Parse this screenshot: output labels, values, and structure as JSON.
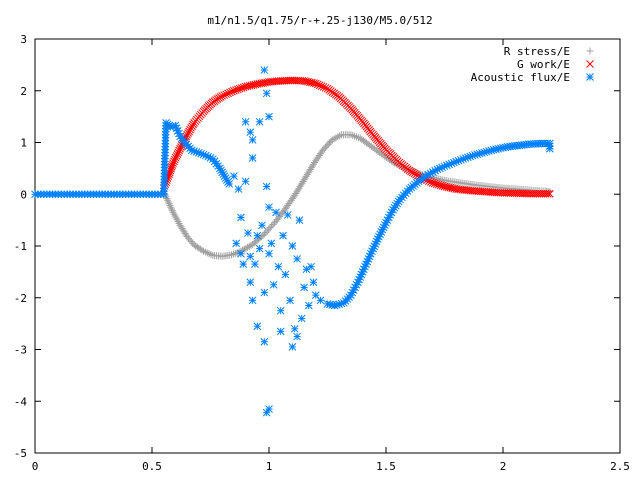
{
  "chart_data": {
    "type": "scatter",
    "title": "m1/n1.5/q1.75/r-+.25-j130/M5.0/512",
    "xlabel": "",
    "ylabel": "",
    "xlim": [
      0,
      2.5
    ],
    "ylim": [
      -5,
      3
    ],
    "x_ticks": [
      0,
      0.5,
      1,
      1.5,
      2,
      2.5
    ],
    "x_tick_labels": [
      "0",
      "0.5",
      "1",
      "1.5",
      "2",
      "2.5"
    ],
    "y_ticks": [
      3,
      2,
      1,
      0,
      -1,
      -2,
      -3,
      -4,
      -5
    ],
    "y_tick_labels": [
      "3",
      "2",
      "1",
      "0",
      "-1",
      "-2",
      "-3",
      "-4",
      "-5"
    ],
    "grid": false,
    "legend_position": "top-right",
    "series": [
      {
        "name": "R stress/E",
        "marker": "plus",
        "color": "#a0a0a0",
        "points": [
          [
            0.55,
            0.05
          ],
          [
            0.57,
            -0.15
          ],
          [
            0.59,
            -0.35
          ],
          [
            0.62,
            -0.6
          ],
          [
            0.65,
            -0.82
          ],
          [
            0.68,
            -0.98
          ],
          [
            0.72,
            -1.1
          ],
          [
            0.76,
            -1.18
          ],
          [
            0.8,
            -1.2
          ],
          [
            0.84,
            -1.17
          ],
          [
            0.88,
            -1.1
          ],
          [
            0.93,
            -0.97
          ],
          [
            0.98,
            -0.77
          ],
          [
            1.03,
            -0.52
          ],
          [
            1.07,
            -0.28
          ],
          [
            1.11,
            -0.02
          ],
          [
            1.15,
            0.28
          ],
          [
            1.19,
            0.58
          ],
          [
            1.23,
            0.85
          ],
          [
            1.27,
            1.05
          ],
          [
            1.31,
            1.15
          ],
          [
            1.35,
            1.15
          ],
          [
            1.39,
            1.08
          ],
          [
            1.43,
            0.95
          ],
          [
            1.48,
            0.78
          ],
          [
            1.53,
            0.62
          ],
          [
            1.58,
            0.5
          ],
          [
            1.64,
            0.4
          ],
          [
            1.7,
            0.32
          ],
          [
            1.76,
            0.26
          ],
          [
            1.82,
            0.22
          ],
          [
            1.88,
            0.18
          ],
          [
            1.94,
            0.15
          ],
          [
            2.0,
            0.12
          ],
          [
            2.06,
            0.1
          ],
          [
            2.12,
            0.08
          ],
          [
            2.18,
            0.06
          ],
          [
            2.2,
            0.05
          ]
        ]
      },
      {
        "name": "G work/E",
        "marker": "cross",
        "color": "#ff0000",
        "points": [
          [
            0.55,
            0.12
          ],
          [
            0.57,
            0.35
          ],
          [
            0.59,
            0.6
          ],
          [
            0.62,
            0.88
          ],
          [
            0.65,
            1.15
          ],
          [
            0.68,
            1.38
          ],
          [
            0.72,
            1.6
          ],
          [
            0.76,
            1.78
          ],
          [
            0.8,
            1.9
          ],
          [
            0.85,
            2.0
          ],
          [
            0.9,
            2.08
          ],
          [
            0.95,
            2.13
          ],
          [
            1.0,
            2.17
          ],
          [
            1.05,
            2.19
          ],
          [
            1.1,
            2.2
          ],
          [
            1.15,
            2.19
          ],
          [
            1.2,
            2.14
          ],
          [
            1.25,
            2.04
          ],
          [
            1.3,
            1.88
          ],
          [
            1.35,
            1.66
          ],
          [
            1.4,
            1.4
          ],
          [
            1.45,
            1.12
          ],
          [
            1.5,
            0.86
          ],
          [
            1.55,
            0.64
          ],
          [
            1.6,
            0.46
          ],
          [
            1.65,
            0.32
          ],
          [
            1.7,
            0.22
          ],
          [
            1.75,
            0.15
          ],
          [
            1.8,
            0.1
          ],
          [
            1.86,
            0.07
          ],
          [
            1.92,
            0.05
          ],
          [
            1.98,
            0.03
          ],
          [
            2.05,
            0.02
          ],
          [
            2.12,
            0.01
          ],
          [
            2.2,
            0.01
          ]
        ]
      },
      {
        "name": "Acoustic flux/E",
        "marker": "star",
        "color": "#0080ff",
        "points": [
          [
            0.0,
            0.0
          ],
          [
            0.05,
            0.0
          ],
          [
            0.1,
            0.0
          ],
          [
            0.15,
            0.0
          ],
          [
            0.2,
            0.0
          ],
          [
            0.25,
            0.0
          ],
          [
            0.3,
            0.0
          ],
          [
            0.35,
            0.0
          ],
          [
            0.4,
            0.0
          ],
          [
            0.45,
            0.0
          ],
          [
            0.5,
            0.0
          ],
          [
            0.55,
            0.0
          ],
          [
            0.56,
            1.38
          ],
          [
            0.58,
            1.3
          ],
          [
            0.6,
            1.33
          ],
          [
            0.62,
            1.12
          ],
          [
            0.64,
            1.0
          ],
          [
            0.67,
            0.85
          ],
          [
            0.7,
            0.8
          ],
          [
            0.73,
            0.75
          ],
          [
            0.76,
            0.68
          ],
          [
            0.79,
            0.5
          ],
          [
            0.81,
            0.35
          ],
          [
            0.83,
            0.2
          ],
          [
            0.85,
            0.35
          ],
          [
            0.87,
            0.1
          ],
          [
            0.88,
            -0.45
          ],
          [
            0.9,
            0.25
          ],
          [
            0.91,
            -0.75
          ],
          [
            0.92,
            -1.2
          ],
          [
            0.93,
            0.7
          ],
          [
            0.94,
            -1.35
          ],
          [
            0.95,
            -0.8
          ],
          [
            0.96,
            -1.05
          ],
          [
            0.97,
            -0.6
          ],
          [
            0.98,
            -1.9
          ],
          [
            0.99,
            0.15
          ],
          [
            1.0,
            -0.25
          ],
          [
            1.0,
            -1.15
          ],
          [
            1.01,
            -0.95
          ],
          [
            1.02,
            -1.75
          ],
          [
            1.03,
            -0.35
          ],
          [
            1.04,
            -1.4
          ],
          [
            1.05,
            -2.25
          ],
          [
            1.06,
            -0.8
          ],
          [
            1.07,
            -1.55
          ],
          [
            1.08,
            -0.4
          ],
          [
            1.09,
            -2.05
          ],
          [
            1.1,
            -1.0
          ],
          [
            1.11,
            -2.6
          ],
          [
            1.12,
            -1.25
          ],
          [
            1.13,
            -0.5
          ],
          [
            1.14,
            -2.4
          ],
          [
            1.15,
            -1.8
          ],
          [
            1.16,
            -1.45
          ],
          [
            1.17,
            -2.15
          ],
          [
            1.18,
            -1.4
          ],
          [
            1.19,
            -1.7
          ],
          [
            1.2,
            -1.95
          ],
          [
            1.22,
            -2.05
          ],
          [
            0.92,
            1.2
          ],
          [
            0.93,
            1.05
          ],
          [
            0.9,
            1.4
          ],
          [
            0.96,
            1.4
          ],
          [
            0.98,
            2.4
          ],
          [
            0.99,
            1.95
          ],
          [
            1.0,
            1.5
          ],
          [
            0.86,
            -0.95
          ],
          [
            0.88,
            -1.15
          ],
          [
            0.89,
            -1.35
          ],
          [
            0.92,
            -1.7
          ],
          [
            0.93,
            -2.05
          ],
          [
            0.95,
            -2.55
          ],
          [
            0.98,
            -2.85
          ],
          [
            1.1,
            -2.95
          ],
          [
            1.12,
            -2.75
          ],
          [
            1.05,
            -2.65
          ],
          [
            1.0,
            -4.15
          ],
          [
            0.99,
            -4.22
          ],
          [
            1.25,
            -2.12
          ],
          [
            1.28,
            -2.15
          ],
          [
            1.32,
            -2.1
          ],
          [
            1.35,
            -1.95
          ],
          [
            1.38,
            -1.7
          ],
          [
            1.41,
            -1.4
          ],
          [
            1.44,
            -1.1
          ],
          [
            1.47,
            -0.82
          ],
          [
            1.5,
            -0.55
          ],
          [
            1.53,
            -0.3
          ],
          [
            1.56,
            -0.1
          ],
          [
            1.6,
            0.1
          ],
          [
            1.64,
            0.25
          ],
          [
            1.68,
            0.38
          ],
          [
            1.72,
            0.48
          ],
          [
            1.76,
            0.56
          ],
          [
            1.8,
            0.63
          ],
          [
            1.84,
            0.7
          ],
          [
            1.88,
            0.76
          ],
          [
            1.92,
            0.81
          ],
          [
            1.96,
            0.86
          ],
          [
            2.0,
            0.9
          ],
          [
            2.04,
            0.93
          ],
          [
            2.08,
            0.95
          ],
          [
            2.12,
            0.97
          ],
          [
            2.16,
            0.98
          ],
          [
            2.2,
            0.98
          ],
          [
            2.2,
            0.88
          ]
        ]
      }
    ]
  }
}
